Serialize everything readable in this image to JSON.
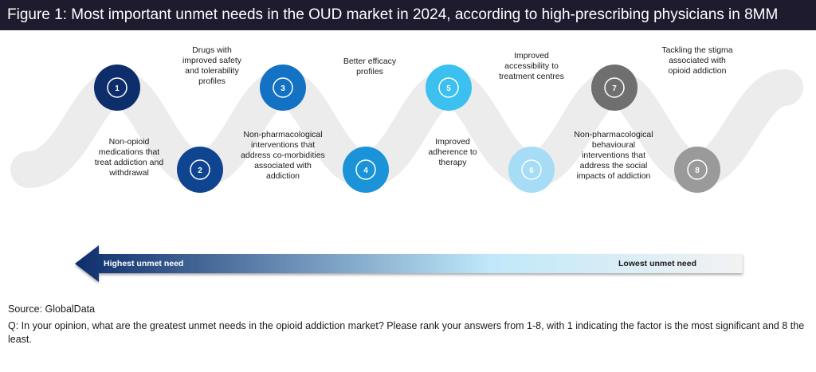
{
  "title": "Figure 1: Most important unmet needs in the OUD market in 2024, according to high-prescribing physicians in 8MM",
  "steps": [
    {
      "number": "1",
      "label": "Non-opioid\nmedications that\ntreat addiction and\nwithdrawal",
      "color": "#0d2d6b"
    },
    {
      "number": "2",
      "label": "Drugs with\nimproved safety\nand tolerability\nprofiles",
      "color": "#0f4590"
    },
    {
      "number": "3",
      "label": "Non-pharmacological\ninterventions that\naddress co-morbidities\nassociated with\naddiction",
      "color": "#1472c4"
    },
    {
      "number": "4",
      "label": "Better efficacy\nprofiles",
      "color": "#1a93d8"
    },
    {
      "number": "5",
      "label": "Improved\nadherence to\ntherapy",
      "color": "#3cc0f0"
    },
    {
      "number": "6",
      "label": "Improved\naccessibility to\ntreatment centres",
      "color": "#a6dcf5"
    },
    {
      "number": "7",
      "label": "Non-pharmacological\nbehavioural\ninterventions that\naddress the social\nimpacts of addiction",
      "color": "#6f6f6f"
    },
    {
      "number": "8",
      "label": "Tackling the stigma\nassociated with\nopioid addiction",
      "color": "#9a9a9a"
    }
  ],
  "scale": {
    "high_label": "Highest unmet need",
    "low_label": "Lowest unmet need",
    "high_color": "#0d2d6b",
    "mid_color": "#bfe8fa",
    "low_color": "#f2f2f2"
  },
  "footer": {
    "source": "Source: GlobalData",
    "question": "Q: In your opinion, what are the greatest unmet needs in the opioid addiction market? Please rank your answers from 1-8, with 1 indicating the factor is the most significant and 8 the least."
  }
}
